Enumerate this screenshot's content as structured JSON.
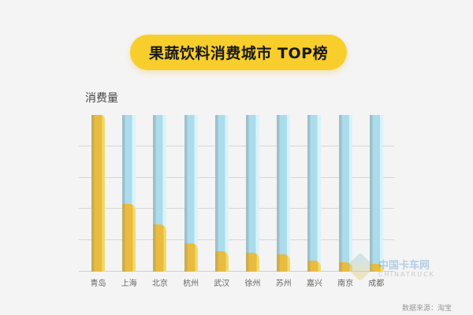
{
  "title": "果蔬饮料消费城市 TOP榜",
  "ylabel": "消费量",
  "source": "数据来源：淘宝",
  "watermark": {
    "brand": "中国卡车网",
    "sub": "CHINATRUCK"
  },
  "colors": {
    "title_bg": "#f8ce2c",
    "bar_fill": "#e9bb3f",
    "bar_track": "#abdcec",
    "background": "#f4f4f4"
  },
  "chart_data": {
    "type": "bar",
    "title": "果蔬饮料消费城市 TOP榜",
    "xlabel": "",
    "ylabel": "消费量",
    "categories": [
      "青岛",
      "上海",
      "北京",
      "杭州",
      "武汉",
      "徐州",
      "苏州",
      "嘉兴",
      "南京",
      "成都"
    ],
    "values": [
      100,
      43,
      30,
      18,
      13,
      12,
      11,
      7,
      6,
      5
    ],
    "ylim": [
      0,
      100
    ],
    "grid": true,
    "gridlines": [
      20,
      40,
      60,
      80
    ],
    "legend": null,
    "note": "Values are relative fill percentages estimated from bar heights (no numeric axis shown)"
  }
}
